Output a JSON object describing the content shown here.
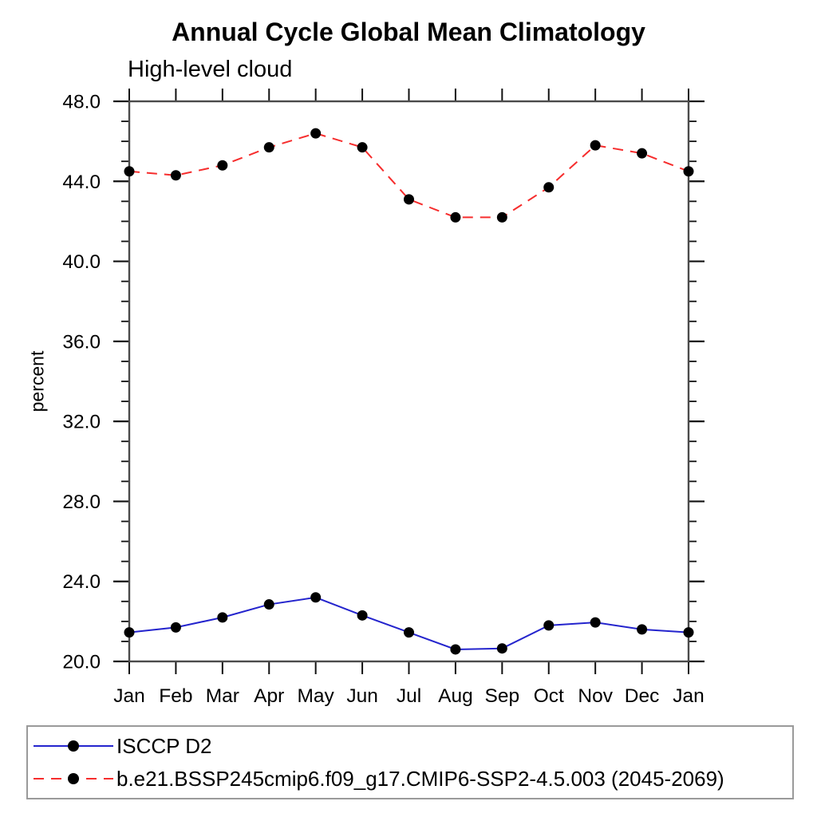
{
  "chart_data": {
    "type": "line",
    "title": "Annual Cycle Global Mean Climatology",
    "subtitle": "High-level cloud",
    "ylabel": "percent",
    "xlabel": "",
    "categories": [
      "Jan",
      "Feb",
      "Mar",
      "Apr",
      "May",
      "Jun",
      "Jul",
      "Aug",
      "Sep",
      "Oct",
      "Nov",
      "Dec",
      "Jan"
    ],
    "ylim": [
      20.0,
      48.0
    ],
    "ytick_values": [
      20,
      24,
      28,
      32,
      36,
      40,
      44,
      48
    ],
    "ytick_labels": [
      "20.0",
      "24.0",
      "28.0",
      "32.0",
      "36.0",
      "40.0",
      "44.0",
      "48.0"
    ],
    "ytick_minor_step": 1,
    "grid": false,
    "legend_position": "bottom-left-box",
    "series": [
      {
        "name": "ISCCP D2",
        "color": "#2424cd",
        "line_style": "solid",
        "marker": "circle",
        "marker_color": "#000000",
        "values": [
          21.45,
          21.7,
          22.2,
          22.85,
          23.2,
          22.3,
          21.45,
          20.6,
          20.65,
          21.8,
          21.95,
          21.6,
          21.45
        ]
      },
      {
        "name": "b.e21.BSSP245cmip6.f09_g17.CMIP6-SSP2-4.5.003 (2045-2069)",
        "color": "#f62d2d",
        "line_style": "dashed",
        "marker": "circle",
        "marker_color": "#000000",
        "values": [
          44.5,
          44.3,
          44.8,
          45.7,
          46.4,
          45.7,
          43.1,
          42.2,
          42.2,
          43.7,
          45.8,
          45.4,
          44.5
        ]
      }
    ]
  },
  "colors": {
    "background": "#ffffff",
    "axis_frame": "#4b4b4b",
    "tick": "#111111",
    "text": "#000000",
    "legend_border": "#9a9a9a"
  }
}
